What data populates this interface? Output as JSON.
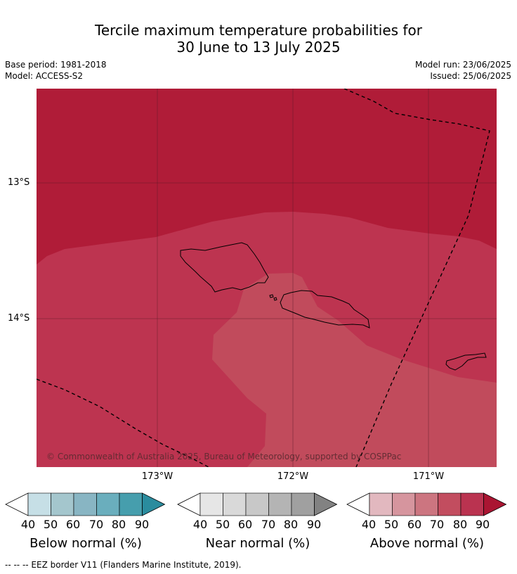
{
  "title": {
    "line1": "Tercile maximum temperature probabilities for",
    "line2": "30 June to 13 July 2025"
  },
  "meta": {
    "base_period": "Base period: 1981-2018",
    "model": "Model: ACCESS-S2",
    "model_run": "Model run: 23/06/2025",
    "issued": "Issued: 25/06/2025"
  },
  "map": {
    "lat_labels": [
      "13°S",
      "14°S"
    ],
    "lon_labels": [
      "173°W",
      "172°W",
      "171°W"
    ],
    "copyright": "© Commonwealth of Australia 2025, Bureau of Meteorology, supported by COSPPac",
    "colors": {
      "above_90": "#b01c38",
      "above_80": "#bd3450",
      "above_70": "#c14b5c",
      "coastline": "#000000",
      "eez_border": "#000000"
    },
    "eez_border_label": "EEZ border"
  },
  "colorbars": [
    {
      "name": "below",
      "title": "Below normal (%)",
      "ticks": [
        "40",
        "50",
        "60",
        "70",
        "80",
        "90"
      ],
      "colors": [
        "#ffffff",
        "#c6dfe6",
        "#a4c6cd",
        "#88b5c3",
        "#6aaebd",
        "#469ead",
        "#2a8c9e"
      ]
    },
    {
      "name": "near",
      "title": "Near normal (%)",
      "ticks": [
        "40",
        "50",
        "60",
        "70",
        "80",
        "90"
      ],
      "colors": [
        "#ffffff",
        "#e6e6e6",
        "#d9d9d9",
        "#c8c8c8",
        "#b4b4b4",
        "#a0a0a0",
        "#828282"
      ]
    },
    {
      "name": "above",
      "title": "Above normal (%)",
      "ticks": [
        "40",
        "50",
        "60",
        "70",
        "80",
        "90"
      ],
      "colors": [
        "#ffffff",
        "#e2b8bf",
        "#d6959e",
        "#cc7580",
        "#c24d5f",
        "#ba3350",
        "#aa1532"
      ]
    }
  ],
  "footer": "--  --  -- EEZ border V11 (Flanders Marine Institute, 2019)."
}
